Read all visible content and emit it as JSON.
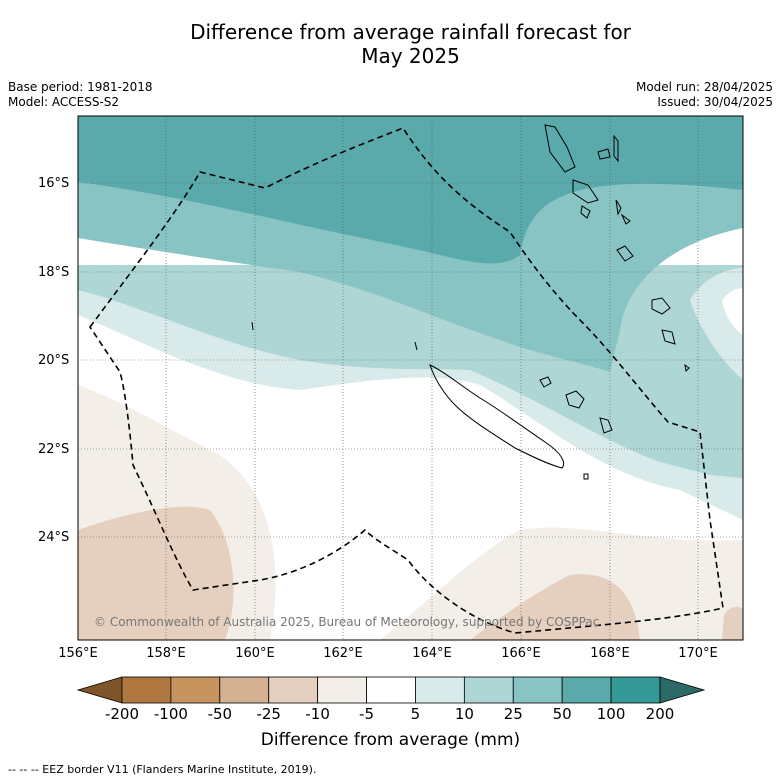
{
  "title_line1": "Difference from average rainfall forecast for",
  "title_line2": "May 2025",
  "base_period": "Base period: 1981-2018",
  "model": "Model: ACCESS-S2",
  "model_run": "Model run: 28/04/2025",
  "issued": "Issued: 30/04/2025",
  "copyright": "© Commonwealth of Australia 2025, Bureau of Meteorology, supported by COSPPac",
  "lat_labels": [
    "16°S",
    "18°S",
    "20°S",
    "22°S",
    "24°S"
  ],
  "lon_labels": [
    "156°E",
    "158°E",
    "160°E",
    "162°E",
    "164°E",
    "166°E",
    "168°E",
    "170°E"
  ],
  "colorbar": {
    "title": "Difference from average (mm)",
    "ticks": [
      "-200",
      "-100",
      "-50",
      "-25",
      "-10",
      "-5",
      "5",
      "10",
      "25",
      "50",
      "100",
      "200"
    ],
    "colors": [
      "#7f5428",
      "#b07840",
      "#c6955f",
      "#d5b194",
      "#e5d0bf",
      "#f3eee8",
      "#ffffff",
      "#d8ebea",
      "#aed6d5",
      "#88c4c3",
      "#5aaaab",
      "#349997",
      "#2b6a66"
    ]
  },
  "footnote": "--  --  -- EEZ border V11 (Flanders Marine Institute, 2019)."
}
